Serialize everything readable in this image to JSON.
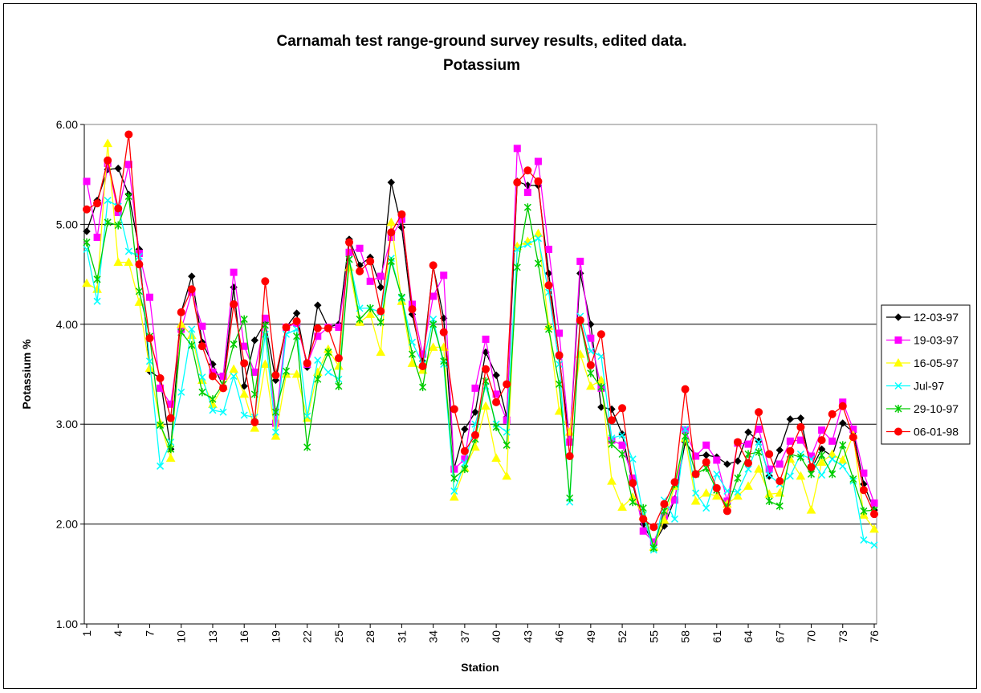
{
  "chart_data": {
    "type": "line",
    "title": [
      "Carnamah test range-ground survey results, edited data.",
      "Potassium"
    ],
    "x_label": "Station",
    "y_label": "Potassium %",
    "categories": [
      "1",
      null,
      null,
      "4",
      null,
      null,
      "7",
      null,
      null,
      "10",
      null,
      null,
      "13",
      null,
      null,
      "16",
      null,
      null,
      "19",
      null,
      null,
      "22",
      null,
      null,
      "25",
      null,
      null,
      "28",
      null,
      null,
      "31",
      null,
      null,
      "34",
      null,
      null,
      "37",
      null,
      null,
      "40",
      null,
      null,
      "43",
      null,
      null,
      "46",
      null,
      null,
      "49",
      null,
      null,
      "52",
      null,
      null,
      "55",
      null,
      null,
      "58",
      null,
      null,
      "61",
      null,
      null,
      "64",
      null,
      null,
      "67",
      null,
      null,
      "70",
      null,
      null,
      "73",
      null,
      null,
      "76"
    ],
    "ylim": [
      1,
      6
    ],
    "yticks": [
      {
        "value": 1,
        "label": "1.00"
      },
      {
        "value": 2,
        "label": "2.00"
      },
      {
        "value": 3,
        "label": "3.00"
      },
      {
        "value": 4,
        "label": "4.00"
      },
      {
        "value": 5,
        "label": "5.00"
      },
      {
        "value": 6,
        "label": "6.00"
      }
    ],
    "grid": true,
    "legend": "right",
    "series": [
      {
        "name": "12-03-97",
        "color": "#000000",
        "marker": "diamond",
        "values": [
          4.93,
          5.24,
          5.55,
          5.56,
          5.3,
          4.75,
          3.53,
          3.46,
          2.75,
          4.12,
          4.48,
          3.82,
          3.6,
          3.38,
          4.37,
          3.38,
          3.84,
          4.02,
          3.44,
          3.97,
          4.11,
          3.57,
          4.19,
          3.97,
          4.0,
          4.85,
          4.59,
          4.67,
          4.37,
          5.42,
          4.97,
          4.1,
          3.63,
          4.58,
          4.06,
          2.56,
          2.95,
          3.12,
          3.72,
          3.49,
          3.07,
          5.43,
          5.39,
          5.39,
          4.51,
          3.67,
          2.82,
          4.51,
          4.0,
          3.17,
          3.15,
          2.9,
          2.4,
          2.0,
          1.8,
          1.98,
          2.25,
          2.82,
          2.68,
          2.69,
          2.67,
          2.6,
          2.63,
          2.92,
          2.83,
          2.48,
          2.74,
          3.05,
          3.06,
          2.55,
          2.75,
          2.68,
          3.01,
          2.92,
          2.4,
          2.14
        ]
      },
      {
        "name": "19-03-97",
        "color": "#ff00ff",
        "marker": "square",
        "values": [
          5.43,
          4.87,
          5.61,
          5.12,
          5.6,
          4.71,
          4.27,
          3.36,
          3.2,
          3.95,
          4.32,
          3.98,
          3.52,
          3.48,
          4.52,
          3.78,
          3.52,
          4.06,
          3.01,
          3.97,
          4.01,
          3.6,
          3.88,
          3.97,
          3.97,
          4.72,
          4.76,
          4.43,
          4.48,
          4.87,
          5.05,
          4.2,
          3.7,
          4.28,
          4.49,
          2.55,
          2.65,
          3.36,
          3.85,
          3.3,
          3.04,
          5.76,
          5.32,
          5.63,
          4.75,
          3.91,
          2.82,
          4.63,
          3.86,
          3.36,
          2.84,
          2.79,
          2.46,
          1.93,
          1.82,
          2.08,
          2.24,
          2.94,
          2.68,
          2.79,
          2.64,
          2.23,
          2.81,
          2.8,
          2.95,
          2.55,
          2.6,
          2.83,
          2.84,
          2.68,
          2.94,
          2.83,
          3.22,
          2.95,
          2.51,
          2.21
        ]
      },
      {
        "name": "16-05-97",
        "color": "#ffff00",
        "marker": "triangle",
        "values": [
          4.41,
          4.35,
          5.81,
          4.62,
          4.62,
          4.22,
          3.56,
          3.01,
          2.66,
          4.0,
          3.89,
          3.44,
          3.2,
          3.38,
          3.55,
          3.3,
          2.96,
          3.6,
          2.88,
          3.5,
          3.5,
          3.06,
          3.52,
          3.75,
          3.58,
          4.57,
          4.02,
          4.1,
          3.72,
          5.02,
          4.23,
          3.61,
          3.54,
          3.77,
          3.77,
          2.27,
          2.56,
          2.77,
          3.18,
          2.66,
          2.48,
          4.78,
          4.83,
          4.91,
          3.98,
          3.13,
          2.92,
          3.7,
          3.38,
          3.44,
          2.43,
          2.17,
          2.27,
          2.08,
          1.77,
          2.04,
          2.38,
          2.86,
          2.23,
          2.31,
          2.28,
          2.2,
          2.28,
          2.38,
          2.55,
          2.3,
          2.31,
          2.65,
          2.48,
          2.14,
          2.62,
          2.7,
          2.64,
          2.89,
          2.09,
          1.95
        ]
      },
      {
        "name": "Jul-97",
        "color": "#00ffff",
        "marker": "x",
        "values": [
          4.75,
          4.23,
          5.24,
          5.18,
          4.73,
          4.68,
          3.63,
          2.58,
          2.82,
          3.32,
          3.95,
          3.47,
          3.14,
          3.12,
          3.48,
          3.09,
          3.07,
          3.9,
          2.92,
          3.9,
          3.95,
          3.08,
          3.64,
          3.52,
          3.45,
          4.65,
          4.16,
          4.16,
          4.12,
          4.66,
          4.26,
          3.82,
          3.6,
          4.05,
          3.6,
          2.33,
          2.61,
          3.0,
          3.38,
          3.0,
          2.92,
          4.75,
          4.8,
          4.86,
          4.32,
          3.6,
          2.22,
          4.08,
          3.73,
          3.68,
          2.86,
          2.89,
          2.65,
          2.09,
          1.74,
          2.24,
          2.05,
          2.95,
          2.31,
          2.16,
          2.5,
          2.33,
          2.32,
          2.55,
          2.82,
          2.49,
          2.4,
          2.48,
          2.7,
          2.65,
          2.49,
          2.65,
          2.58,
          2.43,
          1.84,
          1.79
        ]
      },
      {
        "name": "29-10-97",
        "color": "#00cc00",
        "marker": "star",
        "values": [
          4.82,
          4.45,
          5.02,
          4.99,
          5.28,
          4.33,
          3.88,
          2.99,
          2.75,
          3.92,
          3.79,
          3.32,
          3.25,
          3.4,
          3.8,
          4.05,
          3.3,
          3.99,
          3.12,
          3.53,
          3.88,
          2.77,
          3.45,
          3.72,
          3.38,
          4.65,
          4.05,
          4.16,
          4.02,
          4.63,
          4.27,
          3.7,
          3.37,
          4.0,
          3.63,
          2.46,
          2.55,
          2.85,
          3.43,
          2.97,
          2.79,
          4.57,
          5.17,
          4.61,
          3.95,
          3.4,
          2.26,
          4.03,
          3.51,
          3.37,
          2.8,
          2.7,
          2.22,
          2.16,
          1.76,
          2.13,
          2.4,
          2.88,
          2.5,
          2.56,
          2.34,
          2.17,
          2.46,
          2.7,
          2.72,
          2.23,
          2.18,
          2.7,
          2.67,
          2.5,
          2.69,
          2.5,
          2.79,
          2.45,
          2.13,
          2.14
        ]
      },
      {
        "name": "06-01-98",
        "color": "#ff0000",
        "marker": "circle",
        "values": [
          5.15,
          5.21,
          5.64,
          5.16,
          5.9,
          4.6,
          3.86,
          3.46,
          3.06,
          4.12,
          4.35,
          3.78,
          3.48,
          3.36,
          4.2,
          3.61,
          3.02,
          4.43,
          3.49,
          3.97,
          4.03,
          3.61,
          3.96,
          3.96,
          3.66,
          4.82,
          4.53,
          4.63,
          4.13,
          4.92,
          5.1,
          4.15,
          3.58,
          4.59,
          3.92,
          3.15,
          2.73,
          2.89,
          3.55,
          3.22,
          3.4,
          5.42,
          5.54,
          5.43,
          4.39,
          3.69,
          2.68,
          4.04,
          3.59,
          3.9,
          3.04,
          3.16,
          2.41,
          2.05,
          1.97,
          2.2,
          2.42,
          3.35,
          2.5,
          2.62,
          2.36,
          2.13,
          2.82,
          2.61,
          3.12,
          2.7,
          2.43,
          2.73,
          2.97,
          2.57,
          2.84,
          3.1,
          3.18,
          2.87,
          2.34,
          2.1
        ]
      }
    ]
  }
}
